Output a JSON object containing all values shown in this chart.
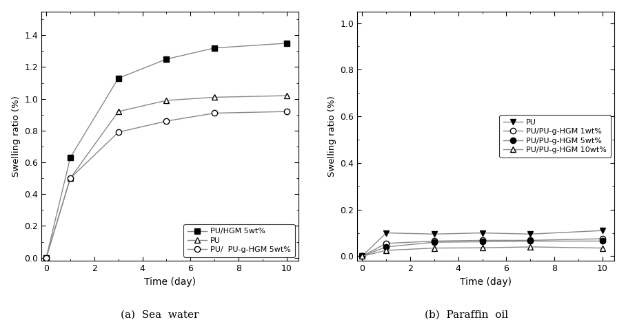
{
  "left": {
    "xlabel": "Time (day)",
    "ylabel": "Swelling ratio (%)",
    "xlim": [
      -0.2,
      10.5
    ],
    "ylim": [
      -0.02,
      1.55
    ],
    "yticks": [
      0.0,
      0.2,
      0.4,
      0.6,
      0.8,
      1.0,
      1.2,
      1.4
    ],
    "xticks": [
      0,
      2,
      4,
      6,
      8,
      10
    ],
    "series": [
      {
        "label": "PU/HGM 5wt%",
        "x": [
          0,
          1,
          3,
          5,
          7,
          10
        ],
        "y": [
          0.0,
          0.63,
          1.13,
          1.25,
          1.32,
          1.35
        ],
        "marker": "s",
        "markerfacecolor": "black",
        "markeredgecolor": "black",
        "color": "#888888",
        "markersize": 6,
        "linewidth": 1.0
      },
      {
        "label": "PU",
        "x": [
          0,
          1,
          3,
          5,
          7,
          10
        ],
        "y": [
          0.0,
          0.5,
          0.92,
          0.99,
          1.01,
          1.02
        ],
        "marker": "^",
        "markerfacecolor": "white",
        "markeredgecolor": "black",
        "color": "#888888",
        "markersize": 6,
        "linewidth": 1.0
      },
      {
        "label": "PU/  PU-g-HGM 5wt%",
        "x": [
          0,
          1,
          3,
          5,
          7,
          10
        ],
        "y": [
          0.0,
          0.5,
          0.79,
          0.86,
          0.91,
          0.92
        ],
        "marker": "o",
        "markerfacecolor": "white",
        "markeredgecolor": "black",
        "color": "#888888",
        "markersize": 6,
        "linewidth": 1.0
      }
    ],
    "legend_loc": "lower right",
    "legend_bbox": null
  },
  "right": {
    "xlabel": "Time (day)",
    "ylabel": "Swelling ratio (%)",
    "xlim": [
      -0.2,
      10.5
    ],
    "ylim": [
      -0.02,
      1.05
    ],
    "yticks": [
      0.0,
      0.2,
      0.4,
      0.6,
      0.8,
      1.0
    ],
    "xticks": [
      0,
      2,
      4,
      6,
      8,
      10
    ],
    "series": [
      {
        "label": "PU",
        "x": [
          0,
          1,
          3,
          5,
          7,
          10
        ],
        "y": [
          0.0,
          0.1,
          0.095,
          0.1,
          0.095,
          0.11
        ],
        "marker": "v",
        "markerfacecolor": "black",
        "markeredgecolor": "black",
        "color": "#888888",
        "markersize": 6,
        "linewidth": 1.0
      },
      {
        "label": "PU/PU-g-HGM 1wt%",
        "x": [
          0,
          1,
          3,
          5,
          7,
          10
        ],
        "y": [
          0.0,
          0.055,
          0.065,
          0.068,
          0.068,
          0.075
        ],
        "marker": "o",
        "markerfacecolor": "white",
        "markeredgecolor": "black",
        "color": "#888888",
        "markersize": 6,
        "linewidth": 1.0
      },
      {
        "label": "PU/PU-g-HGM 5wt%",
        "x": [
          0,
          1,
          3,
          5,
          7,
          10
        ],
        "y": [
          0.0,
          0.04,
          0.06,
          0.062,
          0.065,
          0.065
        ],
        "marker": "o",
        "markerfacecolor": "black",
        "markeredgecolor": "black",
        "color": "#888888",
        "markersize": 6,
        "linewidth": 1.0
      },
      {
        "label": "PU/PU-g-HGM 10wt%",
        "x": [
          0,
          1,
          3,
          5,
          7,
          10
        ],
        "y": [
          0.0,
          0.025,
          0.035,
          0.036,
          0.04,
          0.035
        ],
        "marker": "^",
        "markerfacecolor": "white",
        "markeredgecolor": "black",
        "color": "#888888",
        "markersize": 6,
        "linewidth": 1.0
      }
    ],
    "legend_loc": "center right",
    "legend_bbox": null
  },
  "caption_left": "(a)  Sea  water",
  "caption_right": "(b)  Paraffin  oil",
  "figsize": [
    9.08,
    4.71
  ],
  "dpi": 100,
  "background_color": "#ffffff"
}
